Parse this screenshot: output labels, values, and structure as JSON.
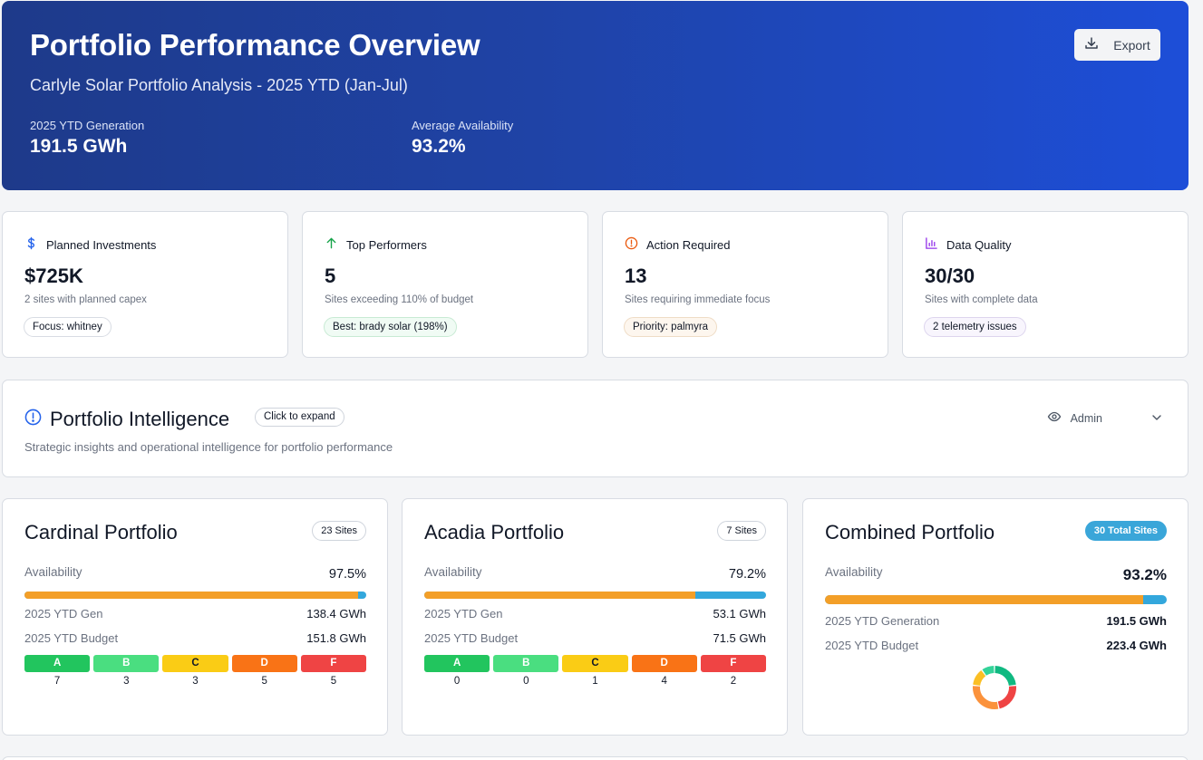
{
  "header": {
    "title": "Portfolio Performance Overview",
    "subtitle": "Carlyle Solar Portfolio Analysis - 2025 YTD (Jan-Jul)",
    "stats": [
      {
        "label": "2025 YTD Generation",
        "value": "191.5 GWh"
      },
      {
        "label": "Average Availability",
        "value": "93.2%"
      }
    ],
    "export_label": "Export"
  },
  "kpis": [
    {
      "icon": "dollar-icon",
      "title": "Planned Investments",
      "value": "$725K",
      "description": "2 sites with planned capex",
      "chip": "Focus: whitney",
      "color": "#2563eb"
    },
    {
      "icon": "arrow-up-icon",
      "title": "Top Performers",
      "value": "5",
      "description": "Sites exceeding 110% of budget",
      "chip": "Best: brady solar (198%)",
      "color": "#16a34a"
    },
    {
      "icon": "alert-circle-icon",
      "title": "Action Required",
      "value": "13",
      "description": "Sites requiring immediate focus",
      "chip": "Priority: palmyra",
      "color": "#ea580c"
    },
    {
      "icon": "bar-chart-icon",
      "title": "Data Quality",
      "value": "30/30",
      "description": "Sites with complete data",
      "chip": "2 telemetry issues",
      "color": "#9333ea"
    }
  ],
  "intelligence": {
    "title": "Portfolio Intelligence",
    "expand_label": "Click to expand",
    "description": "Strategic insights and operational intelligence for portfolio performance",
    "admin_label": "Admin",
    "icon_color": "#2563eb"
  },
  "portfolios": {
    "cardinal": {
      "title": "Cardinal Portfolio",
      "sites": "23 Sites",
      "availability_label": "Availability",
      "availability": "97.5%",
      "availability_pct": 97.5,
      "gen_label": "2025 YTD Gen",
      "gen": "138.4 GWh",
      "budget_label": "2025 YTD Budget",
      "budget": "151.8 GWh",
      "grades": [
        {
          "grade": "A",
          "count": "7"
        },
        {
          "grade": "B",
          "count": "3"
        },
        {
          "grade": "C",
          "count": "3"
        },
        {
          "grade": "D",
          "count": "5"
        },
        {
          "grade": "F",
          "count": "5"
        }
      ]
    },
    "acadia": {
      "title": "Acadia Portfolio",
      "sites": "7 Sites",
      "availability_label": "Availability",
      "availability": "79.2%",
      "availability_pct": 79.2,
      "gen_label": "2025 YTD Gen",
      "gen": "53.1 GWh",
      "budget_label": "2025 YTD Budget",
      "budget": "71.5 GWh",
      "grades": [
        {
          "grade": "A",
          "count": "0"
        },
        {
          "grade": "B",
          "count": "0"
        },
        {
          "grade": "C",
          "count": "1"
        },
        {
          "grade": "D",
          "count": "4"
        },
        {
          "grade": "F",
          "count": "2"
        }
      ]
    },
    "combined": {
      "title": "Combined Portfolio",
      "sites": "30 Total Sites",
      "availability_label": "Availability",
      "availability": "93.2%",
      "availability_pct": 93.2,
      "gen_label": "2025 YTD Generation",
      "gen": "191.5 GWh",
      "budget_label": "2025 YTD Budget",
      "budget": "223.4 GWh",
      "grade_distribution": [
        {
          "grade": "A",
          "count": 7,
          "color": "#10b981"
        },
        {
          "grade": "F",
          "count": 7,
          "color": "#ef4444"
        },
        {
          "grade": "D",
          "count": 9,
          "color": "#fb923c"
        },
        {
          "grade": "C",
          "count": 4,
          "color": "#fbbf24"
        },
        {
          "grade": "B",
          "count": 3,
          "color": "#34d399"
        }
      ]
    }
  },
  "grade_colors": {
    "A": {
      "bg": "#22c55e",
      "fg": "#ffffff"
    },
    "B": {
      "bg": "#4ade80",
      "fg": "#ffffff"
    },
    "C": {
      "bg": "#facc15",
      "fg": "#111827"
    },
    "D": {
      "bg": "#f97316",
      "fg": "#ffffff"
    },
    "F": {
      "bg": "#ef4444",
      "fg": "#ffffff"
    }
  },
  "colors": {
    "availability_fill": "#f39f28",
    "availability_track": "#33a7dc"
  }
}
